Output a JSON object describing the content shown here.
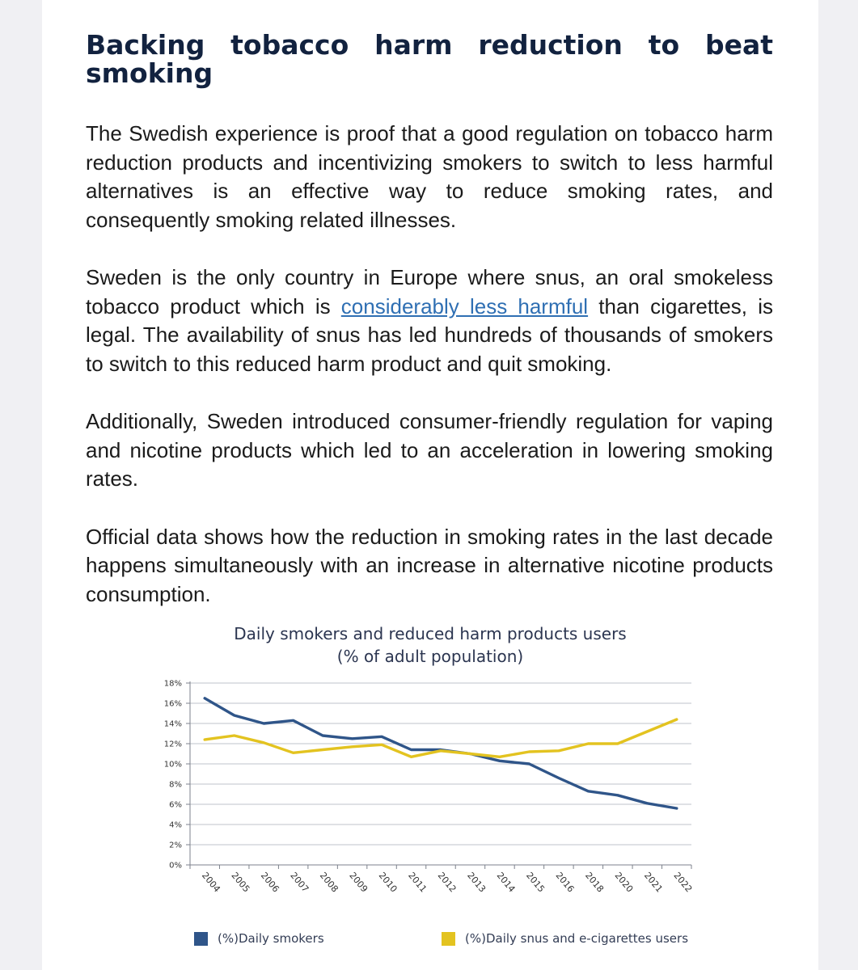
{
  "article": {
    "heading": "Backing tobacco harm reduction to beat smoking",
    "p1": "The Swedish experience is proof that a good regulation on tobacco harm reduction products and incentivizing smokers to switch to less harmful alternatives is an effective way to reduce smoking rates, and consequently smoking related illnesses.",
    "p2_before": "Sweden is the only country in Europe where snus, an oral smokeless tobacco product which is ",
    "p2_link": "considerably less harmful",
    "p2_after": " than cigarettes, is legal. The availability of snus has led hundreds of thousands of smokers to switch to this reduced harm product and quit smoking.",
    "p3": "Additionally, Sweden introduced consumer-friendly regulation for vaping and nicotine products which led to an acceleration in lowering smoking rates.",
    "p4": "Official data shows how the reduction in smoking rates in the last decade happens simultaneously with an increase in alternative nicotine products consumption."
  },
  "chart_data": {
    "type": "line",
    "title": "Daily smokers and reduced harm products users",
    "subtitle": "(% of adult population)",
    "xlabel": "",
    "ylabel": "",
    "categories": [
      "2004",
      "2005",
      "2006",
      "2007",
      "2008",
      "2009",
      "2010",
      "2011",
      "2012",
      "2013",
      "2014",
      "2015",
      "2016",
      "2018",
      "2020",
      "2021",
      "2022"
    ],
    "ylim": [
      0,
      18
    ],
    "yticks": [
      0,
      2,
      4,
      6,
      8,
      10,
      12,
      14,
      16,
      18
    ],
    "ytick_labels": [
      "0%",
      "2%",
      "4%",
      "6%",
      "8%",
      "10%",
      "12%",
      "14%",
      "16%",
      "18%"
    ],
    "grid": true,
    "legend_position": "bottom",
    "series": [
      {
        "name": "(%)Daily smokers",
        "color": "#2f5589",
        "values": [
          16.5,
          14.8,
          14.0,
          14.3,
          12.8,
          12.5,
          12.7,
          11.4,
          11.4,
          11.0,
          10.3,
          10.0,
          8.6,
          7.3,
          6.9,
          6.1,
          5.6
        ]
      },
      {
        "name": "(%)Daily snus and e-cigarettes users",
        "color": "#e3c320",
        "values": [
          12.4,
          12.8,
          12.1,
          11.1,
          11.4,
          11.7,
          11.9,
          10.7,
          11.3,
          11.0,
          10.7,
          11.2,
          11.3,
          12.0,
          12.0,
          13.2,
          14.4
        ]
      }
    ]
  }
}
